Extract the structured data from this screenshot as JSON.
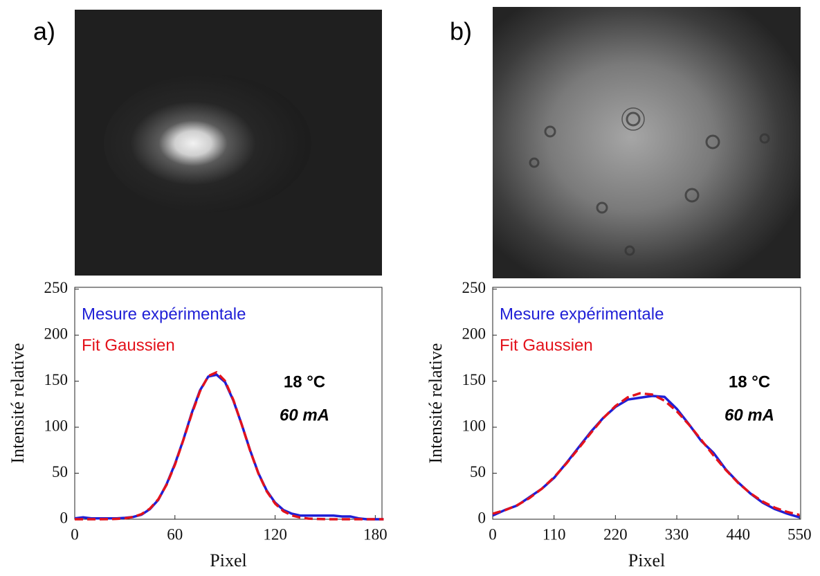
{
  "chart_data": [
    {
      "type": "line",
      "panel_label": "a)",
      "xlabel": "Pixel",
      "ylabel": "Intensité relative",
      "annotations": [
        "18 °C",
        "60 mA"
      ],
      "x": [
        0,
        5,
        10,
        15,
        20,
        25,
        30,
        35,
        40,
        45,
        50,
        55,
        60,
        65,
        70,
        75,
        80,
        85,
        90,
        95,
        100,
        105,
        110,
        115,
        120,
        125,
        130,
        135,
        140,
        145,
        150,
        155,
        160,
        165,
        170,
        175,
        180,
        185
      ],
      "series": [
        {
          "name": "Mesure expérimentale",
          "color": "#1f1fd6",
          "dash": false,
          "values": [
            1,
            2,
            1,
            1,
            1,
            1,
            1.5,
            2.5,
            5,
            11,
            21,
            38,
            60,
            86,
            115,
            140,
            155,
            157,
            149,
            129,
            103,
            75,
            50,
            31,
            18,
            10,
            6,
            4,
            4,
            4,
            4,
            4,
            3,
            3,
            1,
            0,
            0,
            0
          ]
        },
        {
          "name": "Fit Gaussien",
          "color": "#e3121b",
          "dash": true,
          "values": [
            0,
            0,
            0,
            0,
            0.1,
            0.4,
            1,
            2.5,
            5.6,
            11.5,
            21.7,
            37.4,
            59.2,
            85.7,
            114,
            139,
            155.6,
            159.7,
            150.3,
            129.7,
            102.8,
            74.6,
            49.7,
            30.3,
            17,
            8.7,
            4.1,
            1.8,
            0.7,
            0.3,
            0.1,
            0,
            0,
            0,
            0,
            0,
            0,
            0
          ]
        }
      ],
      "xlim": [
        0,
        184
      ],
      "ylim": [
        0,
        252
      ],
      "xticks": [
        0,
        60,
        120,
        180
      ],
      "yticks": [
        0,
        50,
        100,
        150,
        200,
        250
      ]
    },
    {
      "type": "line",
      "panel_label": "b)",
      "xlabel": "Pixel",
      "ylabel": "Intensité relative",
      "annotations": [
        "18 °C",
        "60 mA"
      ],
      "x": [
        0,
        22,
        44,
        66,
        88,
        110,
        132,
        154,
        176,
        198,
        220,
        242,
        264,
        286,
        308,
        330,
        352,
        374,
        396,
        418,
        440,
        462,
        484,
        506,
        528,
        550
      ],
      "series": [
        {
          "name": "Mesure expérimentale",
          "color": "#1f1fd6",
          "dash": false,
          "values": [
            4,
            10,
            15,
            24,
            33,
            45,
            61,
            78,
            95,
            110,
            122,
            130,
            132,
            134,
            133,
            120,
            103,
            85,
            72,
            54,
            40,
            28,
            18,
            11,
            6,
            2
          ]
        },
        {
          "name": "Fit Gaussien",
          "color": "#e3121b",
          "dash": true,
          "values": [
            6,
            9.8,
            15.3,
            23,
            33.1,
            45.6,
            60.5,
            76.9,
            93.8,
            109.7,
            123,
            132.5,
            136.8,
            135.5,
            128.8,
            117.4,
            102.6,
            86.1,
            69.3,
            53.5,
            39.6,
            28.2,
            19.2,
            12.5,
            7.9,
            4.7
          ]
        }
      ],
      "xlim": [
        0,
        552
      ],
      "ylim": [
        0,
        252
      ],
      "xticks": [
        0,
        110,
        220,
        330,
        440,
        550
      ],
      "yticks": [
        0,
        50,
        100,
        150,
        200,
        250
      ]
    }
  ]
}
